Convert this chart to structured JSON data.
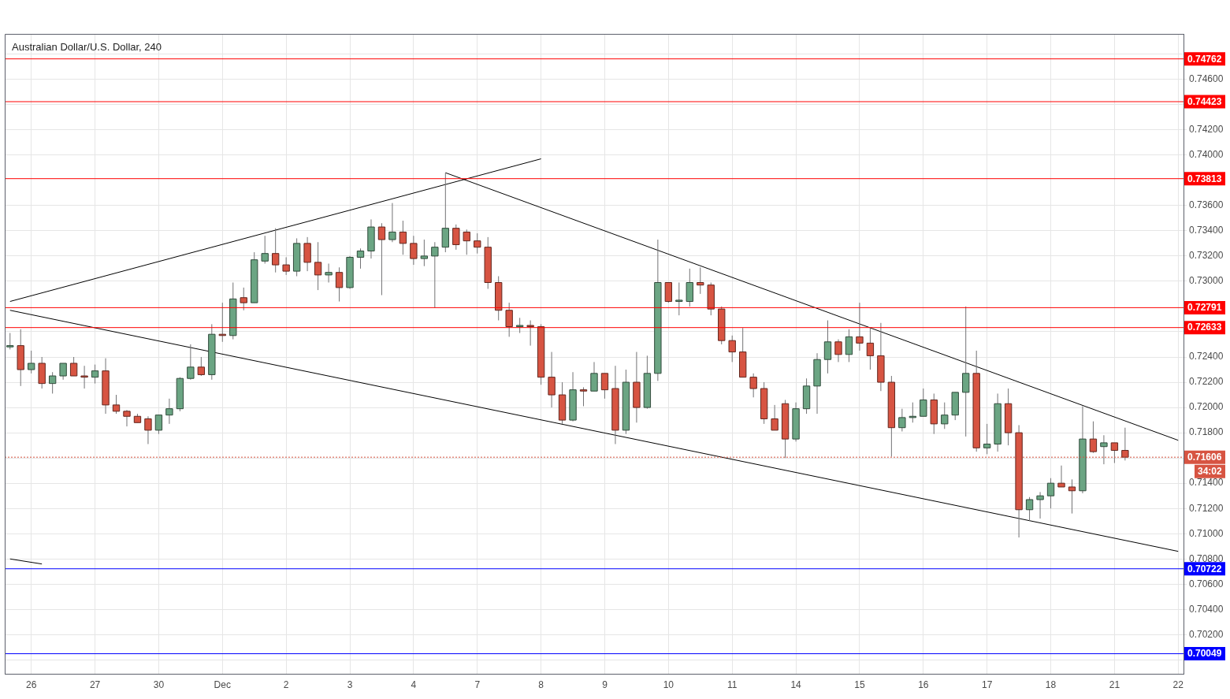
{
  "chart_data": {
    "type": "candlestick",
    "title": "Australian Dollar/U.S. Dollar, 240",
    "categories": [
      null,
      null,
      "26",
      null,
      null,
      null,
      null,
      null,
      "27",
      null,
      null,
      null,
      null,
      null,
      "30",
      null,
      null,
      null,
      null,
      null,
      "Dec",
      null,
      null,
      null,
      null,
      null,
      "2",
      null,
      null,
      null,
      null,
      null,
      "3",
      null,
      null,
      null,
      null,
      null,
      "4",
      null,
      null,
      null,
      null,
      null,
      "7",
      null,
      null,
      null,
      null,
      null,
      "8",
      null,
      null,
      null,
      null,
      null,
      "9",
      null,
      null,
      null,
      null,
      null,
      "10",
      null,
      null,
      null,
      null,
      null,
      "11",
      null,
      null,
      null,
      null,
      null,
      "14",
      null,
      null,
      null,
      null,
      null,
      "15",
      null,
      null,
      null,
      null,
      null,
      "16",
      null,
      null,
      null,
      null,
      null,
      "17",
      null,
      null,
      null,
      null,
      null,
      "18",
      null,
      null,
      null,
      null,
      null,
      "21",
      null,
      null,
      null,
      null,
      null,
      "22"
    ],
    "ohlc": [
      [
        0.7248,
        0.7259,
        0.7246,
        0.7249
      ],
      [
        0.7249,
        0.7262,
        0.7217,
        0.723
      ],
      [
        0.723,
        0.7245,
        0.7227,
        0.7235
      ],
      [
        0.7235,
        0.724,
        0.7215,
        0.7219
      ],
      [
        0.7219,
        0.7228,
        0.7211,
        0.7225
      ],
      [
        0.7225,
        0.7235,
        0.7222,
        0.7235
      ],
      [
        0.7235,
        0.724,
        0.7225,
        0.7225
      ],
      [
        0.7225,
        0.7233,
        0.7215,
        0.7224
      ],
      [
        0.7224,
        0.7234,
        0.7219,
        0.7229
      ],
      [
        0.7229,
        0.7239,
        0.7195,
        0.7202
      ],
      [
        0.7202,
        0.721,
        0.7195,
        0.7197
      ],
      [
        0.7197,
        0.7198,
        0.7185,
        0.7193
      ],
      [
        0.7193,
        0.7195,
        0.7188,
        0.7188
      ],
      [
        0.7191,
        0.7193,
        0.7171,
        0.7182
      ],
      [
        0.7182,
        0.7194,
        0.7179,
        0.7194
      ],
      [
        0.7194,
        0.7207,
        0.7187,
        0.7199
      ],
      [
        0.7199,
        0.7224,
        0.7197,
        0.7223
      ],
      [
        0.7223,
        0.725,
        0.7222,
        0.7232
      ],
      [
        0.7232,
        0.724,
        0.7225,
        0.7226
      ],
      [
        0.7226,
        0.7266,
        0.7222,
        0.7258
      ],
      [
        0.7258,
        0.7283,
        0.7252,
        0.7257
      ],
      [
        0.7257,
        0.7299,
        0.7254,
        0.7286
      ],
      [
        0.7287,
        0.7295,
        0.7277,
        0.7283
      ],
      [
        0.7283,
        0.7323,
        0.7283,
        0.7317
      ],
      [
        0.7316,
        0.7336,
        0.7314,
        0.7322
      ],
      [
        0.7322,
        0.7342,
        0.7307,
        0.7313
      ],
      [
        0.7313,
        0.7319,
        0.7305,
        0.7308
      ],
      [
        0.7308,
        0.7334,
        0.7304,
        0.733
      ],
      [
        0.733,
        0.7335,
        0.7308,
        0.7315
      ],
      [
        0.7315,
        0.7331,
        0.7293,
        0.7305
      ],
      [
        0.7305,
        0.7314,
        0.7299,
        0.7307
      ],
      [
        0.7307,
        0.7311,
        0.7284,
        0.7295
      ],
      [
        0.7295,
        0.732,
        0.7294,
        0.7319
      ],
      [
        0.7319,
        0.7326,
        0.731,
        0.7324
      ],
      [
        0.7324,
        0.7349,
        0.7318,
        0.7343
      ],
      [
        0.7343,
        0.7346,
        0.7289,
        0.7333
      ],
      [
        0.7333,
        0.7362,
        0.7331,
        0.7339
      ],
      [
        0.7339,
        0.7348,
        0.7321,
        0.733
      ],
      [
        0.733,
        0.7336,
        0.7313,
        0.7318
      ],
      [
        0.7318,
        0.7333,
        0.7312,
        0.732
      ],
      [
        0.732,
        0.7331,
        0.7279,
        0.7327
      ],
      [
        0.7327,
        0.7386,
        0.7323,
        0.7342
      ],
      [
        0.7342,
        0.7345,
        0.7325,
        0.7329
      ],
      [
        0.7339,
        0.7341,
        0.7321,
        0.7332
      ],
      [
        0.7332,
        0.7338,
        0.7322,
        0.7327
      ],
      [
        0.7327,
        0.7335,
        0.7294,
        0.7299
      ],
      [
        0.7299,
        0.7304,
        0.7269,
        0.7277
      ],
      [
        0.7277,
        0.7283,
        0.7256,
        0.7264
      ],
      [
        0.7264,
        0.7271,
        0.7259,
        0.7265
      ],
      [
        0.7265,
        0.7269,
        0.7249,
        0.7264
      ],
      [
        0.7264,
        0.7266,
        0.7218,
        0.7224
      ],
      [
        0.7224,
        0.7244,
        0.72,
        0.721
      ],
      [
        0.721,
        0.722,
        0.7187,
        0.719
      ],
      [
        0.719,
        0.7228,
        0.7189,
        0.7214
      ],
      [
        0.7214,
        0.7216,
        0.7201,
        0.7213
      ],
      [
        0.7213,
        0.7236,
        0.7213,
        0.7227
      ],
      [
        0.7227,
        0.7227,
        0.7207,
        0.7214
      ],
      [
        0.7215,
        0.7233,
        0.7171,
        0.7182
      ],
      [
        0.7182,
        0.723,
        0.7179,
        0.722
      ],
      [
        0.722,
        0.7244,
        0.7188,
        0.72
      ],
      [
        0.72,
        0.7241,
        0.7199,
        0.7227
      ],
      [
        0.7227,
        0.7333,
        0.7221,
        0.7299
      ],
      [
        0.7299,
        0.7299,
        0.7283,
        0.7284
      ],
      [
        0.7284,
        0.7299,
        0.7273,
        0.7285
      ],
      [
        0.7284,
        0.731,
        0.728,
        0.7299
      ],
      [
        0.7299,
        0.7311,
        0.729,
        0.7297
      ],
      [
        0.7297,
        0.7299,
        0.7273,
        0.7278
      ],
      [
        0.7278,
        0.728,
        0.725,
        0.7253
      ],
      [
        0.7253,
        0.7257,
        0.7236,
        0.7244
      ],
      [
        0.7244,
        0.7263,
        0.7224,
        0.7224
      ],
      [
        0.7224,
        0.7227,
        0.7208,
        0.7215
      ],
      [
        0.7215,
        0.722,
        0.7187,
        0.7191
      ],
      [
        0.7191,
        0.7202,
        0.7182,
        0.7182
      ],
      [
        0.7203,
        0.7206,
        0.716,
        0.7175
      ],
      [
        0.7175,
        0.7204,
        0.7173,
        0.7199
      ],
      [
        0.7199,
        0.7223,
        0.7195,
        0.7217
      ],
      [
        0.7217,
        0.7243,
        0.7195,
        0.7238
      ],
      [
        0.7238,
        0.7269,
        0.7227,
        0.7252
      ],
      [
        0.7252,
        0.7254,
        0.7236,
        0.7242
      ],
      [
        0.7242,
        0.7262,
        0.7236,
        0.7256
      ],
      [
        0.7256,
        0.7283,
        0.7245,
        0.7251
      ],
      [
        0.7251,
        0.7263,
        0.723,
        0.7241
      ],
      [
        0.7241,
        0.7267,
        0.7213,
        0.722
      ],
      [
        0.722,
        0.7225,
        0.7161,
        0.7184
      ],
      [
        0.7184,
        0.7199,
        0.7181,
        0.7192
      ],
      [
        0.7192,
        0.7204,
        0.7188,
        0.7193
      ],
      [
        0.7193,
        0.7215,
        0.7193,
        0.7206
      ],
      [
        0.7206,
        0.7211,
        0.7179,
        0.7187
      ],
      [
        0.7187,
        0.7204,
        0.7183,
        0.7194
      ],
      [
        0.7194,
        0.7212,
        0.719,
        0.7212
      ],
      [
        0.7212,
        0.728,
        0.7177,
        0.7227
      ],
      [
        0.7227,
        0.7245,
        0.7165,
        0.7168
      ],
      [
        0.7168,
        0.7187,
        0.7163,
        0.7171
      ],
      [
        0.7171,
        0.7211,
        0.7165,
        0.7203
      ],
      [
        0.7203,
        0.7215,
        0.717,
        0.718
      ],
      [
        0.718,
        0.7186,
        0.7097,
        0.7119
      ],
      [
        0.7119,
        0.7129,
        0.711,
        0.7127
      ],
      [
        0.7127,
        0.7133,
        0.7112,
        0.713
      ],
      [
        0.713,
        0.7144,
        0.712,
        0.714
      ],
      [
        0.714,
        0.7154,
        0.7137,
        0.7137
      ],
      [
        0.7137,
        0.7143,
        0.7116,
        0.7134
      ],
      [
        0.7134,
        0.7201,
        0.7132,
        0.7175
      ],
      [
        0.7175,
        0.7189,
        0.7164,
        0.7165
      ],
      [
        0.7169,
        0.7178,
        0.7155,
        0.7172
      ],
      [
        0.7172,
        0.7172,
        0.7156,
        0.7166
      ],
      [
        0.7166,
        0.7184,
        0.7158,
        0.71606
      ],
      null,
      null,
      null,
      null,
      null
    ],
    "colors": [
      "#6ba583",
      "#d75442",
      "#6ba583",
      "#d75442",
      "#6ba583",
      "#6ba583",
      "#d75442",
      "#d75442",
      "#6ba583",
      "#d75442",
      "#d75442",
      "#d75442",
      "#d75442",
      "#d75442",
      "#6ba583",
      "#6ba583",
      "#6ba583",
      "#6ba583",
      "#d75442",
      "#6ba583",
      "#d75442",
      "#6ba583",
      "#d75442",
      "#6ba583",
      "#6ba583",
      "#d75442",
      "#d75442",
      "#6ba583",
      "#d75442",
      "#d75442",
      "#6ba583",
      "#d75442",
      "#6ba583",
      "#6ba583",
      "#6ba583",
      "#d75442",
      "#6ba583",
      "#d75442",
      "#d75442",
      "#6ba583",
      "#6ba583",
      "#6ba583",
      "#d75442",
      "#d75442",
      "#d75442",
      "#d75442",
      "#d75442",
      "#d75442",
      "#6ba583",
      "#d75442",
      "#d75442",
      "#d75442",
      "#d75442",
      "#6ba583",
      "#d75442",
      "#6ba583",
      "#d75442",
      "#d75442",
      "#6ba583",
      "#d75442",
      "#6ba583",
      "#6ba583",
      "#d75442",
      "#6ba583",
      "#6ba583",
      "#d75442",
      "#d75442",
      "#d75442",
      "#d75442",
      "#d75442",
      "#d75442",
      "#d75442",
      "#d75442",
      "#d75442",
      "#6ba583",
      "#6ba583",
      "#6ba583",
      "#6ba583",
      "#d75442",
      "#6ba583",
      "#d75442",
      "#d75442",
      "#d75442",
      "#d75442",
      "#6ba583",
      "#6ba583",
      "#6ba583",
      "#d75442",
      "#6ba583",
      "#6ba583",
      "#6ba583",
      "#d75442",
      "#6ba583",
      "#6ba583",
      "#d75442",
      "#d75442",
      "#6ba583",
      "#6ba583",
      "#6ba583",
      "#d75442",
      "#d75442",
      "#6ba583",
      "#d75442",
      "#6ba583",
      "#d75442",
      "#d75442",
      null,
      null,
      null,
      null,
      null
    ],
    "series": [
      {
        "type": "line",
        "color": "#000000",
        "values": [
          0.7284,
          null,
          null,
          null,
          null,
          null,
          null,
          null,
          null,
          null,
          null,
          null,
          null,
          null,
          null,
          null,
          null,
          null,
          null,
          null,
          null,
          null,
          null,
          null,
          null,
          null,
          null,
          null,
          null,
          null,
          null,
          null,
          null,
          null,
          null,
          null,
          null,
          null,
          null,
          null,
          null,
          null,
          null,
          null,
          null,
          null,
          null,
          null,
          null,
          null,
          0.7397,
          null,
          null,
          null,
          null,
          null,
          null,
          null,
          null,
          null,
          null,
          null,
          null,
          null,
          null,
          null,
          null,
          null,
          null,
          null,
          null,
          null,
          null,
          null,
          null,
          null,
          null,
          null,
          null,
          null,
          null,
          null,
          null,
          null,
          null,
          null,
          null,
          null,
          null,
          null,
          null,
          null,
          null,
          null,
          null,
          null,
          null,
          null,
          null,
          null,
          null,
          null,
          null,
          null,
          null,
          null,
          null,
          null,
          null,
          null,
          null
        ]
      },
      {
        "type": "line",
        "color": "#000000",
        "values": [
          0.7277,
          null,
          null,
          null,
          null,
          null,
          null,
          null,
          null,
          null,
          null,
          null,
          null,
          null,
          null,
          null,
          null,
          null,
          null,
          null,
          null,
          null,
          null,
          null,
          null,
          null,
          null,
          null,
          null,
          null,
          null,
          null,
          null,
          null,
          null,
          null,
          null,
          null,
          null,
          null,
          null,
          null,
          null,
          null,
          null,
          null,
          null,
          null,
          null,
          null,
          null,
          null,
          null,
          null,
          null,
          null,
          null,
          null,
          null,
          null,
          null,
          null,
          null,
          null,
          null,
          null,
          null,
          null,
          null,
          null,
          null,
          null,
          null,
          null,
          null,
          null,
          null,
          null,
          null,
          null,
          null,
          null,
          null,
          null,
          null,
          null,
          null,
          null,
          null,
          null,
          null,
          null,
          null,
          null,
          null,
          null,
          null,
          null,
          null,
          null,
          null,
          null,
          null,
          null,
          null,
          null,
          null,
          null,
          null,
          null,
          0.7086
        ]
      },
      {
        "type": "line",
        "color": "#000000",
        "values": [
          null,
          null,
          null,
          null,
          null,
          null,
          null,
          null,
          null,
          null,
          null,
          null,
          null,
          null,
          null,
          null,
          null,
          null,
          null,
          null,
          null,
          null,
          null,
          null,
          null,
          null,
          null,
          null,
          null,
          null,
          null,
          null,
          null,
          null,
          null,
          null,
          null,
          null,
          null,
          null,
          null,
          0.7386,
          null,
          null,
          null,
          null,
          null,
          null,
          null,
          null,
          null,
          null,
          null,
          null,
          null,
          null,
          null,
          null,
          null,
          null,
          null,
          null,
          null,
          null,
          null,
          null,
          null,
          null,
          null,
          null,
          null,
          null,
          null,
          null,
          null,
          null,
          null,
          null,
          null,
          null,
          null,
          null,
          null,
          null,
          null,
          null,
          null,
          null,
          null,
          null,
          null,
          null,
          null,
          null,
          null,
          null,
          null,
          null,
          null,
          null,
          null,
          null,
          null,
          null,
          null,
          null,
          null,
          null,
          null,
          null,
          0.7174
        ]
      },
      {
        "type": "line",
        "color": "#000000",
        "values": [
          0.708,
          null,
          null,
          0.7076,
          null,
          null,
          null,
          null,
          null,
          null,
          null,
          null,
          null,
          null,
          null,
          null,
          null,
          null,
          null,
          null,
          null,
          null,
          null,
          null,
          null,
          null,
          null,
          null,
          null,
          null,
          null,
          null,
          null,
          null,
          null,
          null,
          null,
          null,
          null,
          null,
          null,
          null,
          null,
          null,
          null,
          null,
          null,
          null,
          null,
          null,
          null,
          null,
          null,
          null,
          null,
          null,
          null,
          null,
          null,
          null,
          null,
          null,
          null,
          null,
          null,
          null,
          null,
          null,
          null,
          null,
          null,
          null,
          null,
          null,
          null,
          null,
          null,
          null,
          null,
          null,
          null,
          null,
          null,
          null,
          null,
          null,
          null,
          null,
          null,
          null,
          null,
          null,
          null,
          null,
          null,
          null,
          null,
          null,
          null,
          null,
          null,
          null,
          null,
          null,
          null,
          null,
          null,
          null,
          null,
          null,
          null
        ]
      }
    ],
    "ylim": [
      0.6989,
      0.7496
    ],
    "yticks": [
      {
        "value": 0.7,
        "label": null
      },
      {
        "value": 0.702,
        "label": "0.70200"
      },
      {
        "value": 0.704,
        "label": "0.70400"
      },
      {
        "value": 0.706,
        "label": "0.70600"
      },
      {
        "value": 0.708,
        "label": "0.70800"
      },
      {
        "value": 0.71,
        "label": "0.71000"
      },
      {
        "value": 0.712,
        "label": "0.71200"
      },
      {
        "value": 0.714,
        "label": "0.71400"
      },
      {
        "value": 0.716,
        "label": null
      },
      {
        "value": 0.718,
        "label": "0.71800"
      },
      {
        "value": 0.72,
        "label": "0.72000"
      },
      {
        "value": 0.722,
        "label": "0.72200"
      },
      {
        "value": 0.724,
        "label": "0.72400"
      },
      {
        "value": 0.726,
        "label": null
      },
      {
        "value": 0.73,
        "label": "0.73000"
      },
      {
        "value": 0.732,
        "label": "0.73200"
      },
      {
        "value": 0.734,
        "label": "0.73400"
      },
      {
        "value": 0.736,
        "label": "0.73600"
      },
      {
        "value": 0.74,
        "label": "0.74000"
      },
      {
        "value": 0.742,
        "label": "0.74200"
      },
      {
        "value": 0.744,
        "label": null
      },
      {
        "value": 0.746,
        "label": "0.74600"
      },
      {
        "value": 0.748,
        "label": null
      }
    ],
    "grid": true,
    "ref_lines": [
      {
        "axis": "y",
        "value": 0.74762,
        "label": "0.74762",
        "color": "#ff0000"
      },
      {
        "axis": "y",
        "value": 0.74423,
        "label": "0.74423",
        "color": "#ff0000"
      },
      {
        "axis": "y",
        "value": 0.73813,
        "label": "0.73813",
        "color": "#ff0000"
      },
      {
        "axis": "y",
        "value": 0.72791,
        "label": "0.72791",
        "color": "#ff0000"
      },
      {
        "axis": "y",
        "value": 0.72633,
        "label": "0.72633",
        "color": "#ff0000"
      },
      {
        "axis": "y",
        "value": 0.71606,
        "label": "0.71606",
        "color": "#d75442",
        "line_style": "dotted"
      },
      {
        "axis": "y",
        "value": 0.70722,
        "label": "0.70722",
        "color": "#0000ff"
      },
      {
        "axis": "y",
        "value": 0.70049,
        "label": "0.70049",
        "color": "#0000ff"
      }
    ],
    "annotations": [
      "34:02"
    ]
  }
}
